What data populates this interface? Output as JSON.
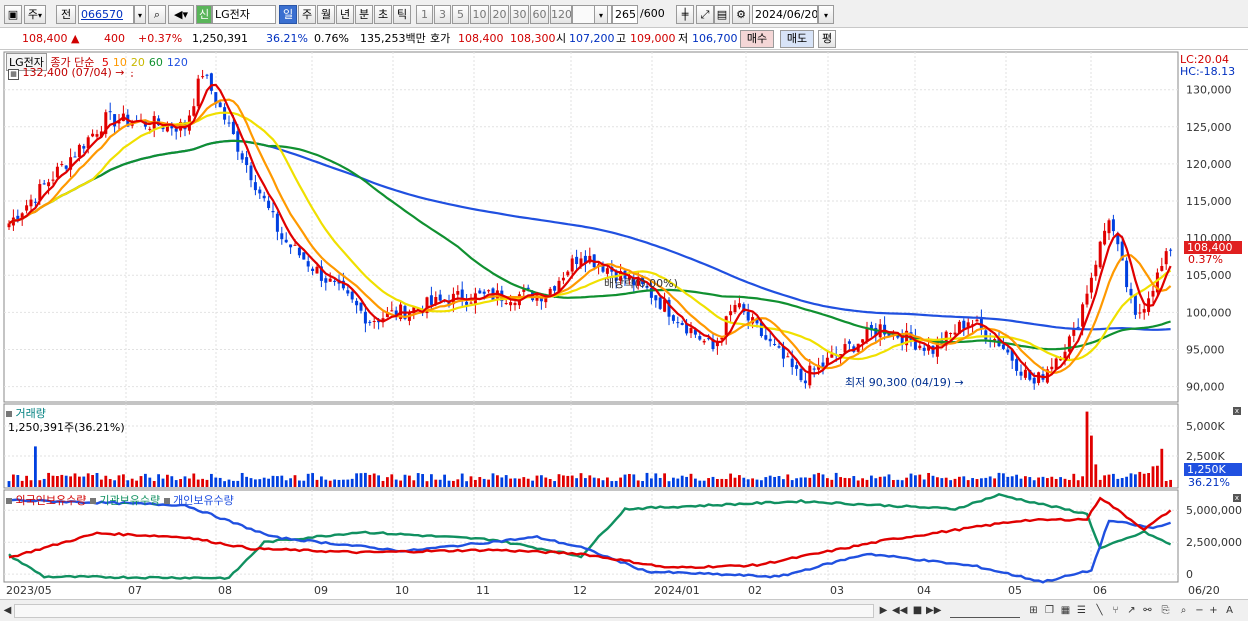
{
  "toolbar": {
    "period_type": "주",
    "prefix": "전",
    "stock_code": "066570",
    "new_badge": "신",
    "stock_name": "LG전자",
    "periods": [
      "일",
      "주",
      "월",
      "년",
      "분",
      "초",
      "틱"
    ],
    "active_period": "일",
    "intervals": [
      "1",
      "3",
      "5",
      "10",
      "20",
      "30",
      "60",
      "120"
    ],
    "count": "265",
    "count_max": "/600",
    "date": "2024/06/20"
  },
  "quote": {
    "price": "108,400",
    "change": "400",
    "change_pct": "+0.37%",
    "volume": "1,250,391",
    "volume_ratio": "36.21%",
    "turnover": "0.76%",
    "amount": "135,253백만",
    "ask_label": "호가",
    "ask": "108,400",
    "bid": "108,300",
    "open_label": "시",
    "open": "107,200",
    "high_label": "고",
    "high": "109,000",
    "low_label": "저",
    "low": "106,700",
    "buy_label": "매수",
    "sell_label": "매도",
    "eval_label": "평"
  },
  "price_panel": {
    "name": "LG전자",
    "ma_label": "종가 단순",
    "ma_periods": [
      "5",
      "10",
      "20",
      "60",
      "120"
    ],
    "lc": "LC:20.04",
    "hc": "HC:-18.13",
    "high_note": "132,400 (07/04)",
    "low_note": "최저 90,300 (04/19)",
    "dividend_note": "배당락(0.00%)",
    "current_price": "108,400",
    "current_pct": "0.37%",
    "y_ticks": [
      "130,000",
      "125,000",
      "120,000",
      "115,000",
      "110,000",
      "105,000",
      "100,000",
      "95,000",
      "90,000"
    ]
  },
  "volume_panel": {
    "title": "거래량",
    "value": "1,250,391주(36.21%)",
    "y_ticks": [
      "5,000K",
      "2,500K"
    ],
    "current": "1,250K",
    "current_pct": "36.21%"
  },
  "holdings_panel": {
    "series": [
      "외국인보유수량",
      "기관보유수량",
      "개인보유수량"
    ],
    "y_ticks": [
      "5,000,000",
      "2,500,000",
      "0"
    ]
  },
  "x_axis": {
    "labels": [
      "2023/05",
      "07",
      "08",
      "09",
      "10",
      "11",
      "12",
      "2024/01",
      "02",
      "03",
      "04",
      "05",
      "06",
      "06/20"
    ]
  },
  "colors": {
    "up": "#e00000",
    "down": "#0040e0",
    "ma5": "#e00000",
    "ma10": "#ff9900",
    "ma20": "#f0e000",
    "ma60": "#109030",
    "ma120": "#2050e0",
    "foreign": "#e00000",
    "institution": "#109060",
    "individual": "#2050e0"
  },
  "chart_data": {
    "type": "candlestick",
    "ylim": [
      89000,
      134000
    ],
    "anchors": [
      {
        "date": "2023/05",
        "close": 112000
      },
      {
        "date": "2023/06",
        "close": 126000
      },
      {
        "date": "2023/07",
        "close": 125000
      },
      {
        "date": "2023/07/04",
        "close": 132400
      },
      {
        "date": "2023/08",
        "close": 110000
      },
      {
        "date": "2023/09",
        "close": 99000
      },
      {
        "date": "2023/10",
        "close": 102000
      },
      {
        "date": "2023/11",
        "close": 102500
      },
      {
        "date": "2023/11/late",
        "close": 108000
      },
      {
        "date": "2023/12",
        "close": 103000
      },
      {
        "date": "2023/12/late",
        "close": 95000
      },
      {
        "date": "2024/01",
        "close": 101000
      },
      {
        "date": "2024/01/late",
        "close": 91000
      },
      {
        "date": "2024/02",
        "close": 98000
      },
      {
        "date": "2024/03",
        "close": 95000
      },
      {
        "date": "2024/03/late",
        "close": 99000
      },
      {
        "date": "2024/04",
        "close": 96000
      },
      {
        "date": "2024/04/19",
        "close": 90300
      },
      {
        "date": "2024/05",
        "close": 97000
      },
      {
        "date": "2024/05/late",
        "close": 113000
      },
      {
        "date": "2024/06",
        "close": 99000
      },
      {
        "date": "2024/06/20",
        "close": 108400
      }
    ]
  }
}
